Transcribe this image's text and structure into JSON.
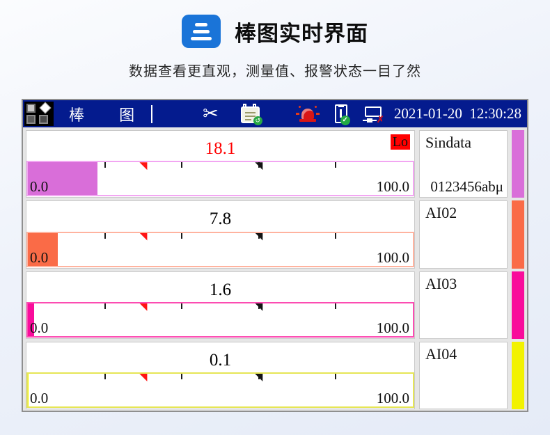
{
  "page": {
    "title": "棒图实时界面",
    "subtitle": "数据查看更直观，测量值、报警状态一目了然",
    "accent_color": "#1a74d8"
  },
  "device": {
    "header": {
      "title": "棒 图",
      "datetime": "2021-01-20  12:30:28",
      "bg_color": "#041b8e",
      "usb_badge": "✓",
      "net_badge": "✗"
    },
    "scale": {
      "min_label": "0.0",
      "max_label": "100.0",
      "ticks_pct": [
        20,
        40,
        60,
        80
      ],
      "low_marker_pct": 30,
      "high_marker_pct": 60
    },
    "channels": [
      {
        "name": "Sindata",
        "unit": "0123456abμ",
        "value": "18.1",
        "value_color": "#ff0000",
        "alarm": "Lo",
        "fill_pct": 18.1,
        "color": "#d96ed9",
        "border_color": "#f2a6f2"
      },
      {
        "name": "AI02",
        "unit": "",
        "value": "7.8",
        "value_color": "#000000",
        "alarm": "",
        "fill_pct": 7.8,
        "color": "#fa6b47",
        "border_color": "#ffb39f"
      },
      {
        "name": "AI03",
        "unit": "",
        "value": "1.6",
        "value_color": "#000000",
        "alarm": "",
        "fill_pct": 1.6,
        "color": "#f90c9b",
        "border_color": "#fc4cb2"
      },
      {
        "name": "AI04",
        "unit": "",
        "value": "0.1",
        "value_color": "#000000",
        "alarm": "",
        "fill_pct": 0.1,
        "color": "#f2f200",
        "border_color": "#e6e655"
      }
    ]
  },
  "chart_data": {
    "type": "bar",
    "categories": [
      "Sindata",
      "AI02",
      "AI03",
      "AI04"
    ],
    "values": [
      18.1,
      7.8,
      1.6,
      0.1
    ],
    "title": "棒图实时界面",
    "xlabel": "",
    "ylabel": "",
    "ylim": [
      0,
      100
    ]
  }
}
